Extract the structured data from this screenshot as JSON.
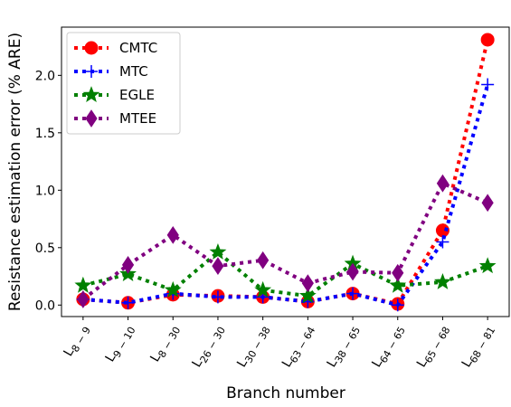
{
  "chart_data": {
    "type": "line",
    "ylabel": "Resistance estimation error (% ARE)",
    "xlabel": "Branch number",
    "categories": [
      "L8 − 9",
      "L9 − 10",
      "L8 − 30",
      "L26 − 30",
      "L30 − 38",
      "L63 − 64",
      "L38 − 65",
      "L64 − 65",
      "L65 − 68",
      "L68 − 81"
    ],
    "series": [
      {
        "name": "CMTC",
        "color": "#ff0000",
        "marker": "circle",
        "values": [
          0.05,
          0.02,
          0.09,
          0.08,
          0.07,
          0.03,
          0.1,
          0.01,
          0.65,
          2.31
        ]
      },
      {
        "name": "MTC",
        "color": "#0000ff",
        "marker": "plus",
        "values": [
          0.05,
          0.02,
          0.1,
          0.07,
          0.07,
          0.03,
          0.1,
          0.0,
          0.55,
          1.92
        ]
      },
      {
        "name": "EGLE",
        "color": "#008000",
        "marker": "star",
        "values": [
          0.17,
          0.27,
          0.13,
          0.46,
          0.13,
          0.08,
          0.36,
          0.17,
          0.2,
          0.34
        ]
      },
      {
        "name": "MTEE",
        "color": "#800080",
        "marker": "diamond",
        "values": [
          0.05,
          0.35,
          0.61,
          0.34,
          0.39,
          0.19,
          0.29,
          0.28,
          1.06,
          0.89
        ]
      }
    ],
    "ylim": [
      -0.1,
      2.42
    ],
    "yticks": [
      {
        "value": 0,
        "label": "0.0"
      },
      0.5,
      {
        "value": 1,
        "label": "1.0"
      },
      1.5,
      {
        "value": 2,
        "label": "2.0"
      }
    ],
    "legend": "upper left",
    "grid": false
  }
}
